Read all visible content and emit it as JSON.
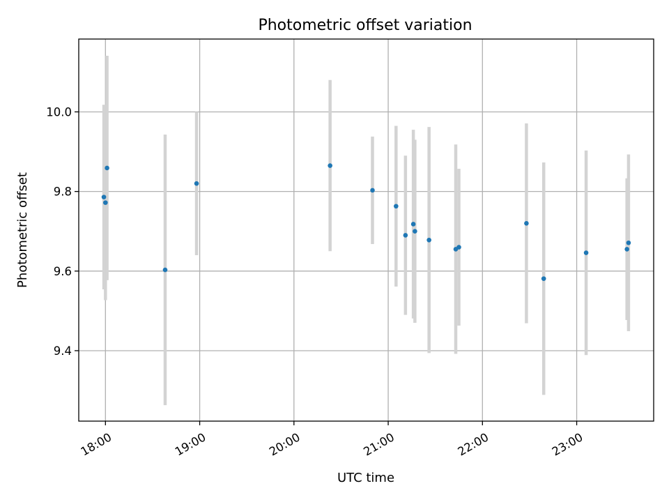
{
  "chart_data": {
    "type": "scatter",
    "title": "Photometric offset variation",
    "xlabel": "UTC time",
    "ylabel": "Photometric offset",
    "x_unit": "hours UTC",
    "xlim": [
      "17:43",
      "23:49"
    ],
    "ylim": [
      9.223,
      10.183
    ],
    "x_ticks": [
      {
        "value": "18:00",
        "label": "18:00"
      },
      {
        "value": "19:00",
        "label": "19:00"
      },
      {
        "value": "20:00",
        "label": "20:00"
      },
      {
        "value": "21:00",
        "label": "21:00"
      },
      {
        "value": "22:00",
        "label": "22:00"
      },
      {
        "value": "23:00",
        "label": "23:00"
      }
    ],
    "y_ticks": [
      {
        "value": 9.4,
        "label": "9.4"
      },
      {
        "value": 9.6,
        "label": "9.6"
      },
      {
        "value": 9.8,
        "label": "9.8"
      },
      {
        "value": 10.0,
        "label": "10.0"
      }
    ],
    "grid": true,
    "colors": {
      "point": "#1f77b4",
      "errorbar": "#d3d3d3",
      "grid": "#b0b0b0"
    },
    "points": [
      {
        "x": "17:59",
        "y": 9.786,
        "yerr": 0.232
      },
      {
        "x": "18:00",
        "y": 9.772,
        "yerr": 0.245
      },
      {
        "x": "18:01",
        "y": 9.859,
        "yerr": 0.282
      },
      {
        "x": "18:38",
        "y": 9.603,
        "yerr": 0.34
      },
      {
        "x": "18:58",
        "y": 9.82,
        "yerr": 0.18
      },
      {
        "x": "20:23",
        "y": 9.865,
        "yerr": 0.215
      },
      {
        "x": "20:50",
        "y": 9.803,
        "yerr": 0.135
      },
      {
        "x": "21:05",
        "y": 9.763,
        "yerr": 0.202
      },
      {
        "x": "21:11",
        "y": 9.69,
        "yerr": 0.2
      },
      {
        "x": "21:16",
        "y": 9.718,
        "yerr": 0.237
      },
      {
        "x": "21:17",
        "y": 9.7,
        "yerr": 0.23
      },
      {
        "x": "21:26",
        "y": 9.678,
        "yerr": 0.284
      },
      {
        "x": "21:43",
        "y": 9.655,
        "yerr": 0.263
      },
      {
        "x": "21:45",
        "y": 9.66,
        "yerr": 0.197
      },
      {
        "x": "22:28",
        "y": 9.72,
        "yerr": 0.251
      },
      {
        "x": "22:39",
        "y": 9.581,
        "yerr": 0.292
      },
      {
        "x": "23:06",
        "y": 9.646,
        "yerr": 0.257
      },
      {
        "x": "23:32",
        "y": 9.655,
        "yerr": 0.178
      },
      {
        "x": "23:33",
        "y": 9.671,
        "yerr": 0.222
      }
    ]
  }
}
